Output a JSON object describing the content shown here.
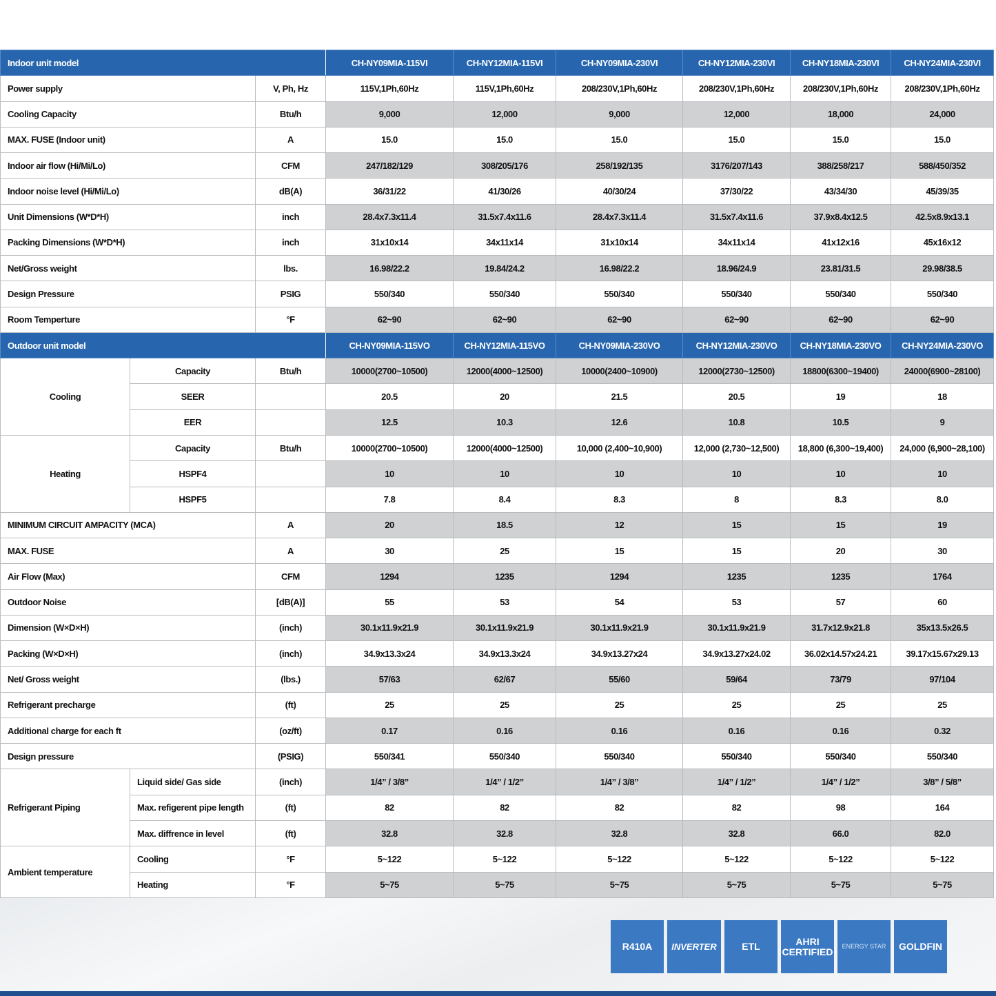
{
  "indoor": {
    "title": "Indoor unit model",
    "models": [
      "CH-NY09MIA-115VI",
      "CH-NY12MIA-115VI",
      "CH-NY09MIA-230VI",
      "CH-NY12MIA-230VI",
      "CH-NY18MIA-230VI",
      "CH-NY24MIA-230VI"
    ],
    "rows": [
      {
        "label": "Power supply",
        "unit": "V, Ph, Hz",
        "values": [
          "115V,1Ph,60Hz",
          "115V,1Ph,60Hz",
          "208/230V,1Ph,60Hz",
          "208/230V,1Ph,60Hz",
          "208/230V,1Ph,60Hz",
          "208/230V,1Ph,60Hz"
        ]
      },
      {
        "label": "Cooling Capacity",
        "unit": "Btu/h",
        "values": [
          "9,000",
          "12,000",
          "9,000",
          "12,000",
          "18,000",
          "24,000"
        ]
      },
      {
        "label": "MAX. FUSE (Indoor unit)",
        "unit": "A",
        "values": [
          "15.0",
          "15.0",
          "15.0",
          "15.0",
          "15.0",
          "15.0"
        ]
      },
      {
        "label": "Indoor air flow (Hi/Mi/Lo)",
        "unit": "CFM",
        "values": [
          "247/182/129",
          "308/205/176",
          "258/192/135",
          "3176/207/143",
          "388/258/217",
          "588/450/352"
        ]
      },
      {
        "label": "Indoor noise level (Hi/Mi/Lo)",
        "unit": "dB(A)",
        "values": [
          "36/31/22",
          "41/30/26",
          "40/30/24",
          "37/30/22",
          "43/34/30",
          "45/39/35"
        ]
      },
      {
        "label": "Unit Dimensions (W*D*H)",
        "unit": "inch",
        "values": [
          "28.4x7.3x11.4",
          "31.5x7.4x11.6",
          "28.4x7.3x11.4",
          "31.5x7.4x11.6",
          "37.9x8.4x12.5",
          "42.5x8.9x13.1"
        ]
      },
      {
        "label": "Packing Dimensions (W*D*H)",
        "unit": "inch",
        "values": [
          "31x10x14",
          "34x11x14",
          "31x10x14",
          "34x11x14",
          "41x12x16",
          "45x16x12"
        ]
      },
      {
        "label": "Net/Gross weight",
        "unit": "lbs.",
        "values": [
          "16.98/22.2",
          "19.84/24.2",
          "16.98/22.2",
          "18.96/24.9",
          "23.81/31.5",
          "29.98/38.5"
        ]
      },
      {
        "label": "Design Pressure",
        "unit": "PSIG",
        "values": [
          "550/340",
          "550/340",
          "550/340",
          "550/340",
          "550/340",
          "550/340"
        ]
      },
      {
        "label": "Room Temperture",
        "unit": "°F",
        "values": [
          "62~90",
          "62~90",
          "62~90",
          "62~90",
          "62~90",
          "62~90"
        ]
      }
    ]
  },
  "outdoor": {
    "title": "Outdoor unit model",
    "models": [
      "CH-NY09MIA-115VO",
      "CH-NY12MIA-115VO",
      "CH-NY09MIA-230VO",
      "CH-NY12MIA-230VO",
      "CH-NY18MIA-230VO",
      "CH-NY24MIA-230VO"
    ],
    "rows": [
      {
        "label": "Cooling",
        "subrows": [
          {
            "label": "Capacity",
            "unit": "Btu/h",
            "values": [
              "10000(2700~10500)",
              "12000(4000~12500)",
              "10000(2400~10900)",
              "12000(2730~12500)",
              "18800(6300~19400)",
              "24000(6900~28100)"
            ]
          },
          {
            "label": "SEER",
            "values": [
              "20.5",
              "20",
              "21.5",
              "20.5",
              "19",
              "18"
            ]
          },
          {
            "label": "EER",
            "values": [
              "12.5",
              "10.3",
              "12.6",
              "10.8",
              "10.5",
              "9"
            ]
          }
        ]
      },
      {
        "label": "Heating",
        "subrows": [
          {
            "label": "Capacity",
            "unit": "Btu/h",
            "values": [
              "10000(2700~10500)",
              "12000(4000~12500)",
              "10,000 (2,400~10,900)",
              "12,000 (2,730~12,500)",
              "18,800 (6,300~19,400)",
              "24,000 (6,900~28,100)"
            ]
          },
          {
            "label": "HSPF4",
            "values": [
              "10",
              "10",
              "10",
              "10",
              "10",
              "10"
            ]
          },
          {
            "label": "HSPF5",
            "values": [
              "7.8",
              "8.4",
              "8.3",
              "8",
              "8.3",
              "8.0"
            ]
          }
        ]
      },
      {
        "label": "MINIMUM CIRCUIT AMPACITY (MCA)",
        "unit": "A",
        "values": [
          "20",
          "18.5",
          "12",
          "15",
          "15",
          "19"
        ]
      },
      {
        "label": "MAX. FUSE",
        "unit": "A",
        "values": [
          "30",
          "25",
          "15",
          "15",
          "20",
          "30"
        ]
      },
      {
        "label": "Air Flow (Max)",
        "unit": "CFM",
        "values": [
          "1294",
          "1235",
          "1294",
          "1235",
          "1235",
          "1764"
        ]
      },
      {
        "label": "Outdoor Noise",
        "unit": "[dB(A)]",
        "values": [
          "55",
          "53",
          "54",
          "53",
          "57",
          "60"
        ]
      },
      {
        "label": "Dimension (W×D×H)",
        "unit": "(inch)",
        "values": [
          "30.1x11.9x21.9",
          "30.1x11.9x21.9",
          "30.1x11.9x21.9",
          "30.1x11.9x21.9",
          "31.7x12.9x21.8",
          "35x13.5x26.5"
        ]
      },
      {
        "label": "Packing  (W×D×H)",
        "unit": "(inch)",
        "values": [
          "34.9x13.3x24",
          "34.9x13.3x24",
          "34.9x13.27x24",
          "34.9x13.27x24.02",
          "36.02x14.57x24.21",
          "39.17x15.67x29.13"
        ]
      },
      {
        "label": "Net/ Gross weight",
        "unit": "(lbs.)",
        "values": [
          "57/63",
          "62/67",
          "55/60",
          "59/64",
          "73/79",
          "97/104"
        ]
      },
      {
        "label": "Refrigerant precharge",
        "unit": "(ft)",
        "values": [
          "25",
          "25",
          "25",
          "25",
          "25",
          "25"
        ]
      },
      {
        "label": "Additional charge for each ft",
        "unit": "(oz/ft)",
        "values": [
          "0.17",
          "0.16",
          "0.16",
          "0.16",
          "0.16",
          "0.32"
        ]
      },
      {
        "label": "Design pressure",
        "unit": "(PSIG)",
        "values": [
          "550/341",
          "550/340",
          "550/340",
          "550/340",
          "550/340",
          "550/340"
        ]
      },
      {
        "label": "Refrigerant Piping",
        "subrows": [
          {
            "label": "Liquid side/ Gas side",
            "unit": "(inch)",
            "values": [
              "1/4” / 3/8”",
              "1/4” / 1/2”",
              "1/4” / 3/8”",
              "1/4” / 1/2”",
              "1/4” / 1/2”",
              "3/8” / 5/8”"
            ]
          },
          {
            "label": "Max. refigerent pipe length",
            "unit": "(ft)",
            "values": [
              "82",
              "82",
              "82",
              "82",
              "98",
              "164"
            ]
          },
          {
            "label": "Max. diffrence in level",
            "unit": "(ft)",
            "values": [
              "32.8",
              "32.8",
              "32.8",
              "32.8",
              "66.0",
              "82.0"
            ]
          }
        ]
      },
      {
        "label": "Ambient temperature",
        "subrows": [
          {
            "label": "Cooling",
            "unit": "°F",
            "values": [
              "5~122",
              "5~122",
              "5~122",
              "5~122",
              "5~122",
              "5~122"
            ]
          },
          {
            "label": "Heating",
            "unit": "°F",
            "values": [
              "5~75",
              "5~75",
              "5~75",
              "5~75",
              "5~75",
              "5~75"
            ]
          }
        ]
      }
    ]
  },
  "badges": [
    "R410A",
    "INVERTER",
    "ETL",
    "AHRI CERTIFIED",
    "ENERGY STAR",
    "GOLDFIN"
  ]
}
